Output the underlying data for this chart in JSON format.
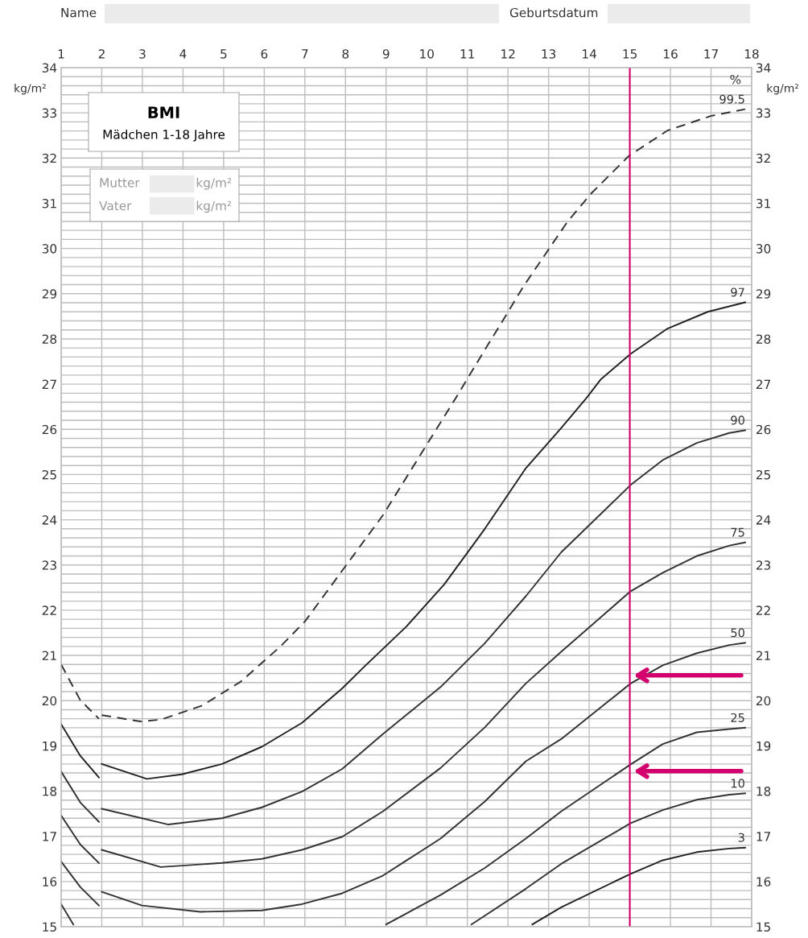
{
  "chart_data": {
    "type": "line",
    "title": "BMI",
    "subtitle": "Mädchen 1-18 Jahre",
    "ylabel": "kg/m²",
    "y2label": "kg/m²",
    "xlim": [
      1,
      18
    ],
    "xticks": [
      1,
      2,
      3,
      4,
      5,
      6,
      7,
      8,
      9,
      10,
      11,
      12,
      13,
      14,
      15,
      16,
      17,
      18
    ],
    "ylim": [
      15,
      34
    ],
    "yticks": [
      15,
      16,
      17,
      18,
      19,
      20,
      21,
      22,
      23,
      24,
      25,
      26,
      27,
      28,
      29,
      30,
      31,
      32,
      33,
      34
    ],
    "y2lim": [
      15,
      34
    ],
    "y2ticks": [
      15,
      16,
      17,
      18,
      19,
      20,
      21,
      22,
      23,
      24,
      25,
      26,
      27,
      28,
      29,
      30,
      31,
      32,
      33,
      34
    ],
    "grid": true,
    "marker": "none",
    "legend": false,
    "series": [
      {
        "name": "99.5",
        "color": "#333333",
        "line_style": "dashed",
        "x": [
          1.0,
          1.47,
          1.93,
          1.96,
          2.0,
          2.95,
          3.45,
          4.47,
          5.42,
          6.4,
          7.0,
          8.92,
          10.72,
          11.37,
          11.89,
          12.38,
          12.91,
          13.44,
          14.03,
          14.98,
          15.93,
          16.99,
          17.84
        ],
        "values": [
          20.8,
          20.01,
          19.6,
          null,
          19.68,
          19.54,
          19.58,
          19.89,
          20.42,
          21.2,
          21.75,
          24.1,
          26.7,
          27.67,
          28.43,
          29.16,
          29.86,
          30.56,
          31.2,
          32.05,
          32.61,
          32.93,
          33.08
        ]
      },
      {
        "name": "97",
        "color": "#222222",
        "line_style": "solid",
        "x": [
          1.0,
          1.47,
          1.93,
          1.96,
          2.0,
          3.11,
          3.97,
          4.96,
          5.94,
          6.93,
          7.92,
          8.46,
          9.5,
          10.43,
          11.43,
          12.44,
          13.31,
          13.94,
          14.29,
          15.02,
          15.93,
          16.92,
          17.84
        ],
        "values": [
          19.48,
          18.78,
          18.3,
          null,
          18.6,
          18.27,
          18.37,
          18.6,
          18.98,
          19.51,
          20.27,
          20.75,
          21.64,
          22.57,
          23.8,
          25.14,
          26.03,
          26.7,
          27.11,
          27.67,
          28.23,
          28.6,
          28.81
        ]
      },
      {
        "name": "90",
        "color": "#333333",
        "line_style": "solid",
        "x": [
          1.0,
          1.47,
          1.93,
          1.96,
          2.0,
          3.64,
          4.96,
          5.94,
          6.93,
          7.92,
          8.92,
          10.34,
          11.43,
          12.44,
          13.31,
          15.02,
          15.81,
          16.65,
          17.45,
          17.84
        ],
        "values": [
          18.43,
          17.75,
          17.32,
          null,
          17.61,
          17.26,
          17.4,
          17.64,
          17.99,
          18.49,
          19.26,
          20.3,
          21.27,
          22.31,
          23.28,
          24.77,
          25.32,
          25.7,
          25.92,
          25.98
        ]
      },
      {
        "name": "75",
        "color": "#333333",
        "line_style": "solid",
        "x": [
          1.0,
          1.47,
          1.93,
          1.96,
          2.0,
          3.45,
          4.96,
          5.94,
          6.93,
          7.92,
          8.92,
          10.34,
          11.43,
          12.44,
          13.31,
          15.02,
          15.81,
          16.65,
          17.45,
          17.84
        ],
        "values": [
          17.46,
          16.82,
          16.41,
          null,
          16.7,
          16.32,
          16.41,
          16.5,
          16.7,
          16.99,
          17.55,
          18.51,
          19.41,
          20.38,
          21.08,
          22.42,
          22.83,
          23.2,
          23.43,
          23.5
        ]
      },
      {
        "name": "50",
        "color": "#333333",
        "line_style": "solid",
        "x": [
          1.0,
          1.47,
          1.93,
          1.96,
          2.0,
          2.99,
          4.43,
          5.94,
          6.93,
          7.92,
          8.92,
          10.34,
          11.43,
          12.44,
          13.31,
          15.02,
          15.81,
          16.65,
          17.45,
          17.84
        ],
        "values": [
          16.44,
          15.88,
          15.47,
          null,
          15.77,
          15.47,
          15.33,
          15.36,
          15.5,
          15.74,
          16.13,
          16.95,
          17.77,
          18.66,
          19.15,
          20.38,
          20.78,
          21.05,
          21.23,
          21.28
        ]
      },
      {
        "name": "25",
        "color": "#333333",
        "line_style": "solid",
        "x": [
          1.0,
          1.3,
          1.96,
          9.0,
          10.34,
          11.43,
          12.44,
          13.31,
          15.02,
          15.81,
          16.65,
          17.45,
          17.84
        ],
        "values": [
          15.5,
          15.05,
          null,
          15.05,
          15.7,
          16.3,
          16.95,
          17.55,
          18.59,
          19.04,
          19.3,
          19.37,
          19.4
        ]
      },
      {
        "name": "10",
        "color": "#333333",
        "line_style": "solid",
        "x": [
          11.1,
          12.44,
          13.31,
          15.02,
          15.81,
          16.65,
          17.45,
          17.84
        ],
        "values": [
          15.05,
          15.84,
          16.39,
          17.29,
          17.58,
          17.81,
          17.92,
          17.95
        ]
      },
      {
        "name": "3",
        "color": "#222222",
        "line_style": "solid",
        "x": [
          12.6,
          13.31,
          15.02,
          15.81,
          16.65,
          17.45,
          17.84
        ],
        "values": [
          15.05,
          15.43,
          16.17,
          16.47,
          16.65,
          16.73,
          16.75
        ]
      }
    ],
    "ref_lines": [
      {
        "axis": "x",
        "value": 15,
        "color": "#d4006e",
        "line_style": "solid"
      }
    ],
    "annotations": [
      "Name",
      "Geburtsdatum",
      "%",
      "Mutter",
      "kg/m²",
      "Vater",
      "kg/m²"
    ]
  }
}
